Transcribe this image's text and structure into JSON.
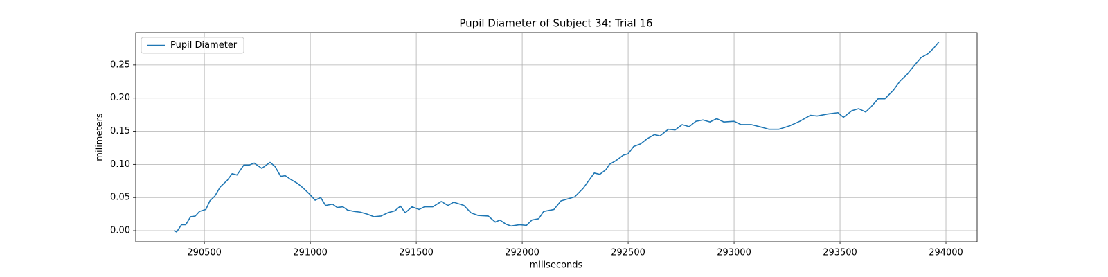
{
  "chart_data": {
    "type": "line",
    "title": "Pupil Diameter of Subject 34: Trial 16",
    "xlabel": "miliseconds",
    "ylabel": "milimeters",
    "x": [
      290356,
      290369,
      290392,
      290412,
      290435,
      290457,
      290477,
      290507,
      290526,
      290549,
      290575,
      290608,
      290631,
      290654,
      290686,
      290712,
      290735,
      290771,
      290810,
      290833,
      290860,
      290882,
      290909,
      290941,
      290964,
      290997,
      291023,
      291049,
      291072,
      291105,
      291127,
      291154,
      291176,
      291209,
      291235,
      291268,
      291301,
      291333,
      291366,
      291399,
      291425,
      291448,
      291480,
      291513,
      291539,
      291578,
      291618,
      291650,
      291676,
      291725,
      291758,
      291791,
      291840,
      291873,
      291895,
      291922,
      291948,
      291987,
      292020,
      292046,
      292078,
      292101,
      292150,
      292183,
      292216,
      292248,
      292288,
      292340,
      292366,
      292395,
      292412,
      292444,
      292477,
      292500,
      292526,
      292559,
      292591,
      292624,
      292650,
      292690,
      292722,
      292755,
      292788,
      292820,
      292853,
      292886,
      292918,
      292951,
      293000,
      293033,
      293082,
      293131,
      293163,
      293212,
      293261,
      293310,
      293360,
      293392,
      293441,
      293490,
      293516,
      293556,
      293588,
      293621,
      293647,
      293680,
      293712,
      293752,
      293784,
      293817,
      293850,
      293882,
      293915,
      293941,
      293967
    ],
    "series": [
      {
        "name": "Pupil Diameter",
        "color": "#1f77b4",
        "values": [
          0.0,
          -0.002,
          0.009,
          0.009,
          0.021,
          0.022,
          0.029,
          0.032,
          0.045,
          0.052,
          0.066,
          0.076,
          0.086,
          0.084,
          0.099,
          0.099,
          0.102,
          0.094,
          0.103,
          0.097,
          0.082,
          0.083,
          0.077,
          0.071,
          0.065,
          0.055,
          0.046,
          0.05,
          0.038,
          0.04,
          0.035,
          0.036,
          0.031,
          0.029,
          0.028,
          0.025,
          0.021,
          0.022,
          0.027,
          0.03,
          0.037,
          0.027,
          0.036,
          0.032,
          0.036,
          0.036,
          0.044,
          0.038,
          0.043,
          0.038,
          0.027,
          0.023,
          0.022,
          0.013,
          0.016,
          0.01,
          0.007,
          0.009,
          0.008,
          0.016,
          0.018,
          0.029,
          0.032,
          0.045,
          0.048,
          0.051,
          0.064,
          0.087,
          0.085,
          0.092,
          0.1,
          0.106,
          0.114,
          0.116,
          0.127,
          0.131,
          0.139,
          0.145,
          0.143,
          0.153,
          0.152,
          0.16,
          0.157,
          0.165,
          0.167,
          0.164,
          0.169,
          0.164,
          0.165,
          0.16,
          0.16,
          0.156,
          0.153,
          0.153,
          0.158,
          0.165,
          0.174,
          0.173,
          0.176,
          0.178,
          0.171,
          0.181,
          0.184,
          0.179,
          0.187,
          0.199,
          0.199,
          0.212,
          0.226,
          0.236,
          0.249,
          0.261,
          0.267,
          0.275,
          0.285
        ]
      }
    ],
    "xlim": [
      290176,
      294147
    ],
    "ylim": [
      -0.0167,
      0.299
    ],
    "xticks": [
      290500,
      291000,
      291500,
      292000,
      292500,
      293000,
      293500,
      294000
    ],
    "yticks": [
      {
        "value": 0,
        "label": "0.00"
      },
      {
        "value": 0.05,
        "label": "0.05"
      },
      {
        "value": 0.1,
        "label": "0.10"
      },
      {
        "value": 0.15,
        "label": "0.15"
      },
      {
        "value": 0.2,
        "label": "0.20"
      },
      {
        "value": 0.25,
        "label": "0.25"
      }
    ],
    "grid": true,
    "legend": "upper left"
  }
}
